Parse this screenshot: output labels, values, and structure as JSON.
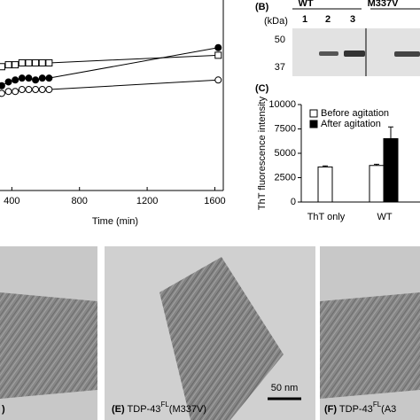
{
  "chart_data": [
    {
      "type": "line",
      "xlabel": "Time (min)",
      "xlim": [
        330,
        1650
      ],
      "xticks": [
        400,
        800,
        1200,
        1600
      ],
      "ylim": [
        0,
        100
      ],
      "x": [
        340,
        380,
        420,
        460,
        500,
        540,
        580,
        620,
        1620
      ],
      "series": [
        {
          "marker": "filled-circle",
          "color": "#000000",
          "values": [
            55,
            57,
            58,
            59,
            59,
            58,
            59,
            59,
            75
          ]
        },
        {
          "marker": "open-square",
          "color": "#000000",
          "values": [
            65,
            66,
            66,
            67,
            67,
            67,
            67,
            67,
            71
          ]
        },
        {
          "marker": "open-circle",
          "color": "#000000",
          "values": [
            51,
            52,
            52,
            53,
            53,
            53,
            53,
            53,
            58
          ]
        }
      ]
    },
    {
      "type": "bar",
      "panel": "(C)",
      "ylabel": "ThT fluorescence intensity",
      "ylim": [
        0,
        10000
      ],
      "yticks": [
        0,
        2500,
        5000,
        7500,
        10000
      ],
      "categories": [
        "ThT only",
        "WT"
      ],
      "legend": "top-left",
      "series": [
        {
          "name": "Before agitation",
          "color": "#ffffff",
          "values": [
            3600,
            3750
          ],
          "errors": [
            100,
            120
          ]
        },
        {
          "name": "After agitation",
          "color": "#000000",
          "values": [
            null,
            6500
          ],
          "errors": [
            null,
            1200
          ]
        }
      ]
    }
  ],
  "gel": {
    "panel": "(B)",
    "groups": [
      "WT",
      "M337V"
    ],
    "lanes": [
      "1",
      "2",
      "3"
    ],
    "unit": "(kDa)",
    "markers": [
      "50",
      "37"
    ]
  },
  "em": {
    "left_label": ")",
    "middle": {
      "panel": "(E)",
      "protein": "TDP-43",
      "sup": "FL",
      "variant": "(M337V)",
      "scale": "50 nm"
    },
    "right": {
      "panel": "(F)",
      "protein": "TDP-43",
      "sup": "FL",
      "variant": "(A3"
    }
  }
}
